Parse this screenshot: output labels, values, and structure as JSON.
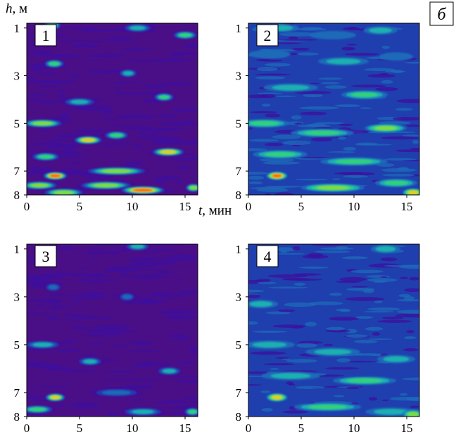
{
  "figure_label": "б",
  "colormap": [
    "#4a0f87",
    "#3d0f9e",
    "#1f3fae",
    "#1e6bb8",
    "#1fb0b0",
    "#33d07a",
    "#7fdc3a",
    "#e0d020",
    "#ff6a10",
    "#ff1f1f"
  ],
  "axis_labels": {
    "y_var": "h",
    "y_unit": ", м",
    "x_var": "t",
    "x_unit": ", мин"
  },
  "chart_data": [
    {
      "type": "heatmap",
      "panel_label": "1",
      "xlim": [
        0,
        16.2
      ],
      "ylim": [
        0.8,
        8.0
      ],
      "y_inverted": true,
      "xticks": [
        0,
        5,
        10,
        15
      ],
      "yticks": [
        1,
        3,
        5,
        7,
        8
      ],
      "background_level": 0,
      "blobs": [
        {
          "t": 2.4,
          "h": 0.9,
          "len": 0.9,
          "level": 5
        },
        {
          "t": 10.5,
          "h": 1.0,
          "len": 1.4,
          "level": 4
        },
        {
          "t": 15.0,
          "h": 1.3,
          "len": 1.2,
          "level": 5
        },
        {
          "t": 2.6,
          "h": 2.5,
          "len": 1.0,
          "level": 5
        },
        {
          "t": 9.6,
          "h": 2.9,
          "len": 0.9,
          "level": 4
        },
        {
          "t": 5.0,
          "h": 4.1,
          "len": 1.6,
          "level": 4
        },
        {
          "t": 13.0,
          "h": 3.9,
          "len": 1.0,
          "level": 5
        },
        {
          "t": 1.5,
          "h": 5.0,
          "len": 2.0,
          "level": 6
        },
        {
          "t": 5.8,
          "h": 5.7,
          "len": 1.4,
          "level": 7
        },
        {
          "t": 8.5,
          "h": 5.5,
          "len": 1.2,
          "level": 5
        },
        {
          "t": 13.4,
          "h": 6.2,
          "len": 1.6,
          "level": 7
        },
        {
          "t": 1.8,
          "h": 6.4,
          "len": 1.4,
          "level": 5
        },
        {
          "t": 2.7,
          "h": 7.2,
          "len": 1.2,
          "level": 8
        },
        {
          "t": 8.5,
          "h": 7.0,
          "len": 3.0,
          "level": 6
        },
        {
          "t": 1.2,
          "h": 7.6,
          "len": 1.8,
          "level": 6
        },
        {
          "t": 7.5,
          "h": 7.6,
          "len": 2.6,
          "level": 6
        },
        {
          "t": 3.5,
          "h": 7.9,
          "len": 2.0,
          "level": 6
        },
        {
          "t": 11.0,
          "h": 7.8,
          "len": 2.2,
          "level": 8
        },
        {
          "t": 15.8,
          "h": 7.7,
          "len": 0.8,
          "level": 6
        }
      ]
    },
    {
      "type": "heatmap",
      "panel_label": "2",
      "xlim": [
        0,
        16.2
      ],
      "ylim": [
        0.8,
        8.0
      ],
      "y_inverted": true,
      "xticks": [
        0,
        5,
        10,
        15
      ],
      "yticks": [
        1,
        3,
        5,
        7,
        8
      ],
      "background_level": 2,
      "blobs": [
        {
          "t": 3.0,
          "h": 1.0,
          "len": 1.8,
          "level": 4
        },
        {
          "t": 8.0,
          "h": 1.3,
          "len": 2.2,
          "level": 3
        },
        {
          "t": 12.5,
          "h": 1.1,
          "len": 1.6,
          "level": 4
        },
        {
          "t": 2.0,
          "h": 2.1,
          "len": 2.0,
          "level": 3
        },
        {
          "t": 9.0,
          "h": 2.4,
          "len": 2.4,
          "level": 4
        },
        {
          "t": 14.0,
          "h": 2.2,
          "len": 1.6,
          "level": 3
        },
        {
          "t": 4.0,
          "h": 3.5,
          "len": 2.6,
          "level": 4
        },
        {
          "t": 11.0,
          "h": 3.8,
          "len": 2.2,
          "level": 5
        },
        {
          "t": 1.5,
          "h": 5.0,
          "len": 2.4,
          "level": 5
        },
        {
          "t": 7.0,
          "h": 5.4,
          "len": 3.0,
          "level": 5
        },
        {
          "t": 13.0,
          "h": 5.2,
          "len": 2.0,
          "level": 6
        },
        {
          "t": 3.0,
          "h": 6.3,
          "len": 2.6,
          "level": 5
        },
        {
          "t": 10.0,
          "h": 6.6,
          "len": 3.2,
          "level": 5
        },
        {
          "t": 2.7,
          "h": 7.2,
          "len": 1.0,
          "level": 8
        },
        {
          "t": 8.0,
          "h": 7.7,
          "len": 3.0,
          "level": 6
        },
        {
          "t": 14.0,
          "h": 7.5,
          "len": 2.0,
          "level": 5
        },
        {
          "t": 15.6,
          "h": 7.9,
          "len": 1.0,
          "level": 7
        }
      ]
    },
    {
      "type": "heatmap",
      "panel_label": "3",
      "xlim": [
        0,
        16.2
      ],
      "ylim": [
        0.8,
        8.0
      ],
      "y_inverted": true,
      "xticks": [
        0,
        5,
        10,
        15
      ],
      "yticks": [
        1,
        3,
        5,
        7,
        8
      ],
      "background_level": 0,
      "blobs": [
        {
          "t": 10.5,
          "h": 0.9,
          "len": 1.2,
          "level": 4
        },
        {
          "t": 2.5,
          "h": 2.6,
          "len": 0.8,
          "level": 3
        },
        {
          "t": 9.5,
          "h": 3.0,
          "len": 0.8,
          "level": 3
        },
        {
          "t": 1.5,
          "h": 5.0,
          "len": 1.8,
          "level": 4
        },
        {
          "t": 6.0,
          "h": 5.7,
          "len": 1.2,
          "level": 4
        },
        {
          "t": 13.5,
          "h": 6.1,
          "len": 1.2,
          "level": 4
        },
        {
          "t": 2.7,
          "h": 7.2,
          "len": 1.0,
          "level": 7
        },
        {
          "t": 8.5,
          "h": 7.0,
          "len": 2.4,
          "level": 3
        },
        {
          "t": 1.0,
          "h": 7.7,
          "len": 1.6,
          "level": 5
        },
        {
          "t": 11.0,
          "h": 7.8,
          "len": 2.0,
          "level": 4
        },
        {
          "t": 15.7,
          "h": 7.8,
          "len": 0.8,
          "level": 5
        }
      ]
    },
    {
      "type": "heatmap",
      "panel_label": "4",
      "xlim": [
        0,
        16.2
      ],
      "ylim": [
        0.8,
        8.0
      ],
      "y_inverted": true,
      "xticks": [
        0,
        5,
        10,
        15
      ],
      "yticks": [
        1,
        3,
        5,
        7,
        8
      ],
      "background_level": 2,
      "blobs": [
        {
          "t": 3.0,
          "h": 1.2,
          "len": 2.0,
          "level": 1
        },
        {
          "t": 10.0,
          "h": 1.6,
          "len": 2.4,
          "level": 1
        },
        {
          "t": 13.0,
          "h": 1.0,
          "len": 1.4,
          "level": 4
        },
        {
          "t": 5.0,
          "h": 2.8,
          "len": 2.6,
          "level": 1
        },
        {
          "t": 1.2,
          "h": 3.3,
          "len": 1.6,
          "level": 4
        },
        {
          "t": 12.0,
          "h": 3.6,
          "len": 2.2,
          "level": 1
        },
        {
          "t": 2.0,
          "h": 5.0,
          "len": 2.4,
          "level": 4
        },
        {
          "t": 8.0,
          "h": 5.3,
          "len": 2.6,
          "level": 4
        },
        {
          "t": 14.0,
          "h": 5.6,
          "len": 1.8,
          "level": 4
        },
        {
          "t": 4.0,
          "h": 6.3,
          "len": 2.8,
          "level": 4
        },
        {
          "t": 11.0,
          "h": 6.5,
          "len": 3.0,
          "level": 5
        },
        {
          "t": 2.7,
          "h": 7.2,
          "len": 1.0,
          "level": 7
        },
        {
          "t": 7.5,
          "h": 7.6,
          "len": 3.2,
          "level": 5
        },
        {
          "t": 13.5,
          "h": 7.8,
          "len": 2.4,
          "level": 4
        },
        {
          "t": 15.6,
          "h": 7.9,
          "len": 1.0,
          "level": 6
        }
      ]
    }
  ]
}
